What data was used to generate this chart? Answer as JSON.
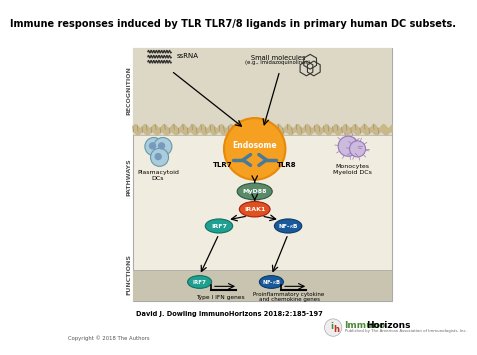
{
  "title": "Immune responses induced by TLR TLR7/8 ligands in primary human DC subsets.",
  "citation": "David J. Dowling ImmunoHorizons 2018;2:185-197",
  "copyright": "Copyright © 2018 The Authors",
  "bg_color": "#f0ede0",
  "recognition_bg": "#ddd8c5",
  "functions_bg": "#c8c4b0",
  "endosome_color": "#f5a020",
  "endosome_ring": "#e8890a",
  "myd88_color": "#5a8a6a",
  "irak_color": "#e05020",
  "irf7_color": "#20a090",
  "nfkb_color": "#1a5a9a",
  "tlr_color": "#4a7a9a",
  "label_side_color": "#555555",
  "arrow_color": "#333333",
  "white": "#ffffff",
  "black": "#000000",
  "immuno_green": "#4a8a3a",
  "immuno_red": "#c03020"
}
